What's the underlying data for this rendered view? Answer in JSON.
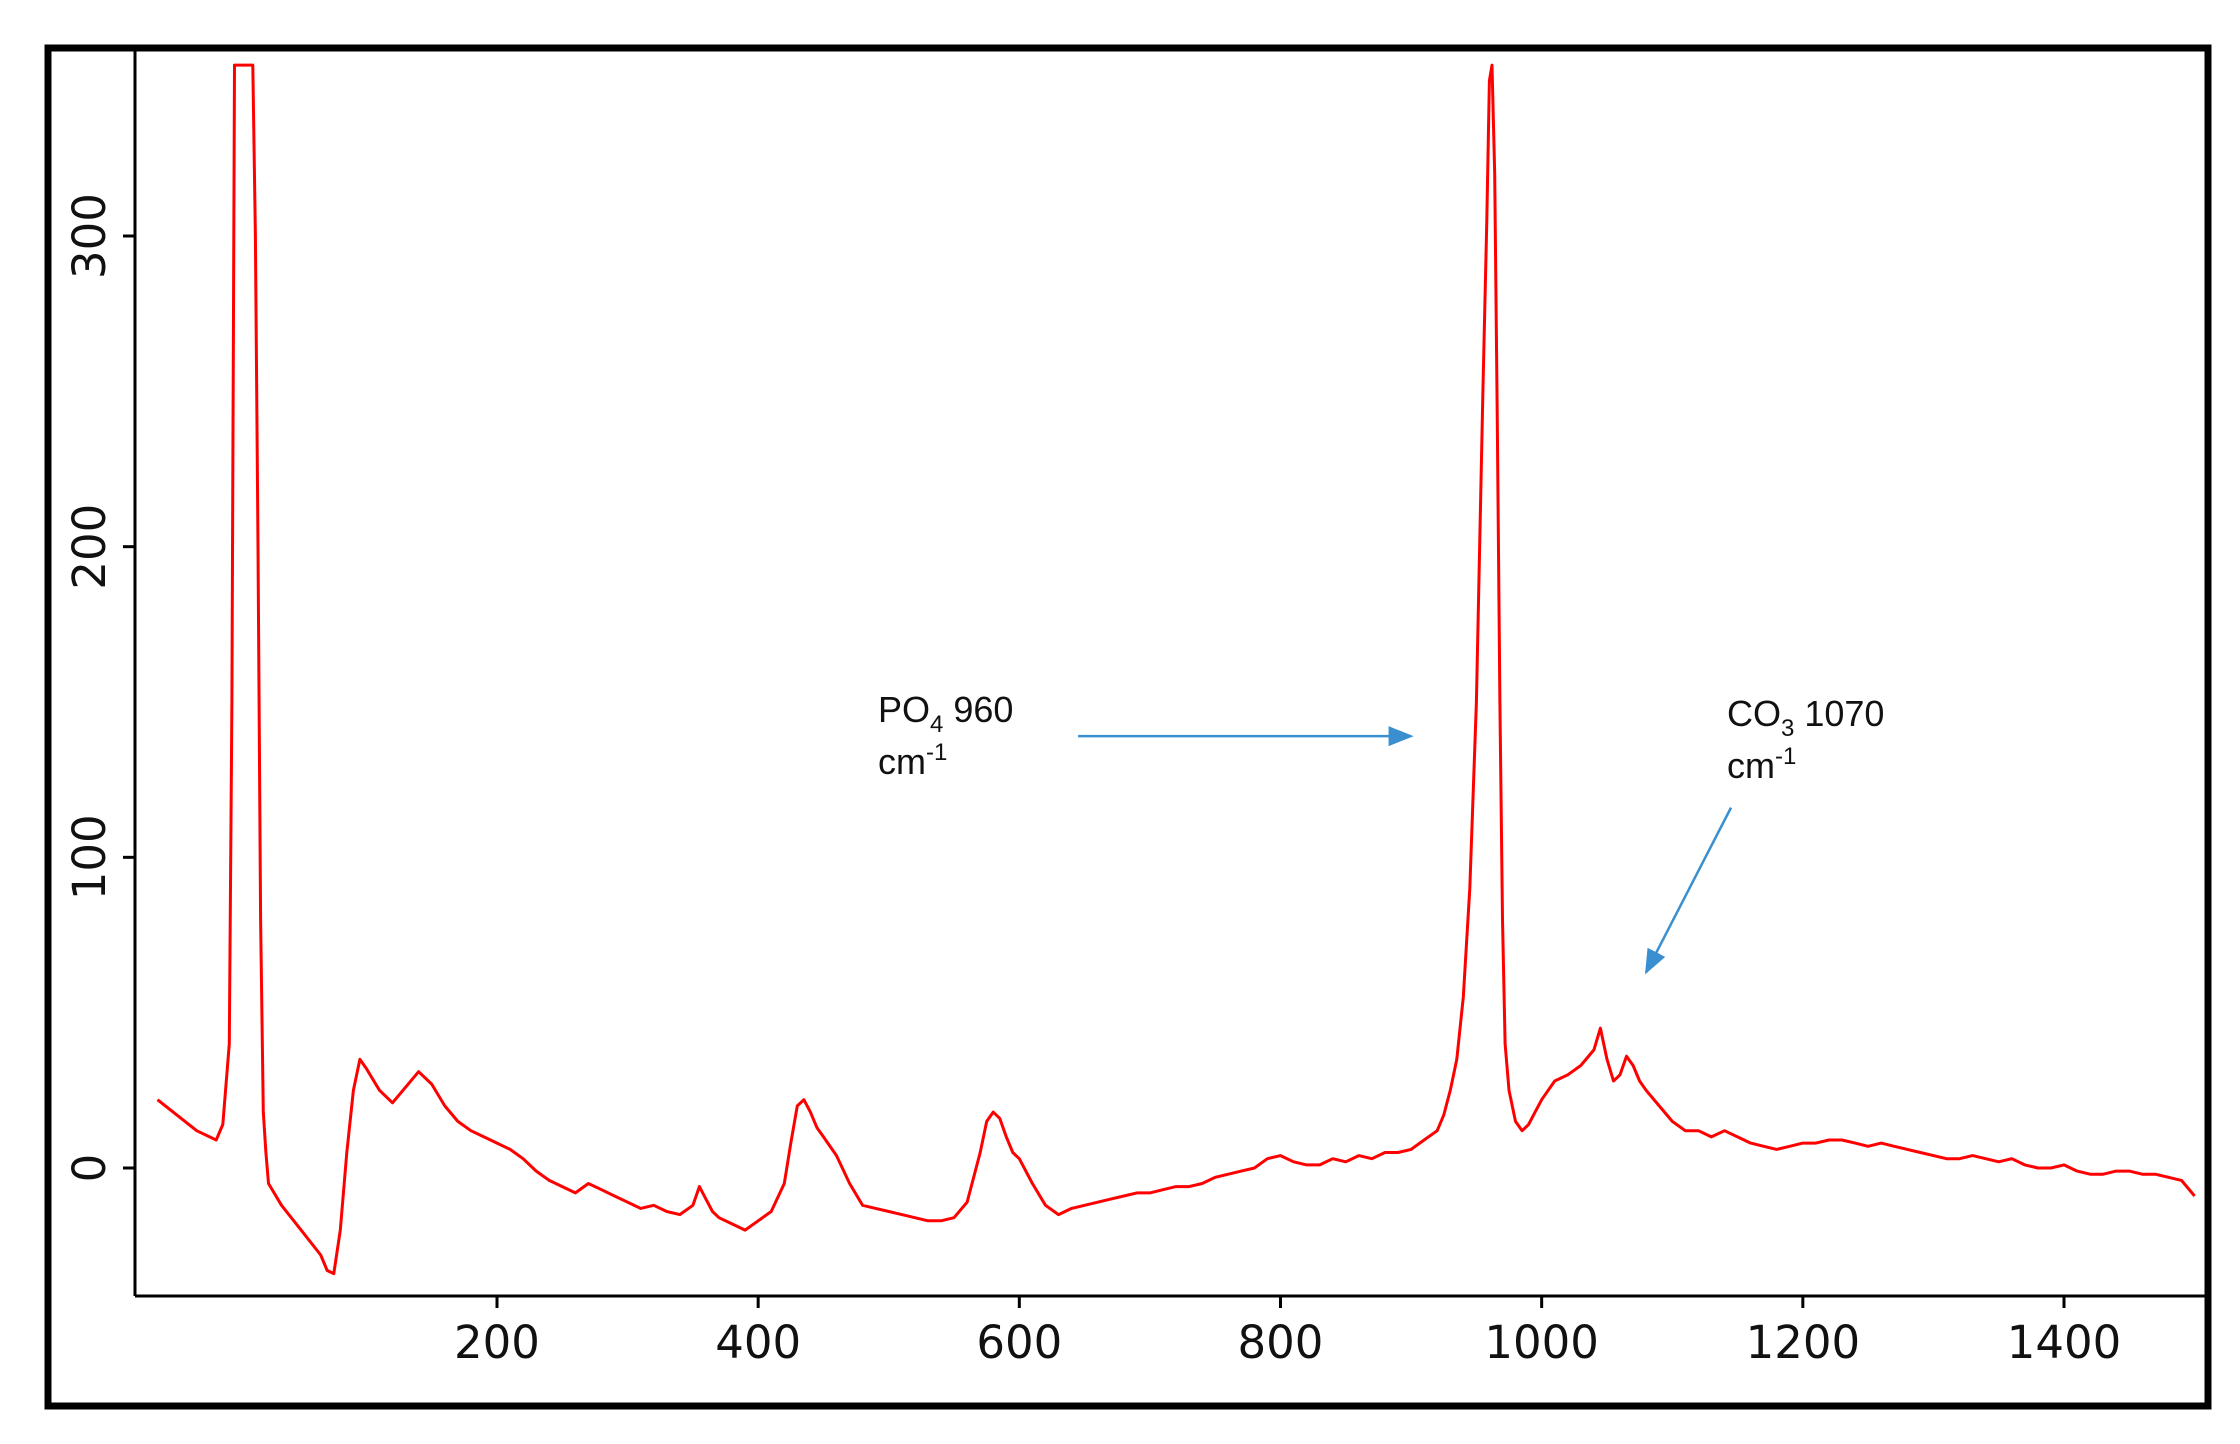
{
  "chart_data": {
    "type": "line",
    "title": "",
    "xlabel": "",
    "ylabel": "",
    "xlim": [
      -60,
      1500
    ],
    "ylim": [
      -42,
      355
    ],
    "x_ticks": [
      200,
      400,
      600,
      800,
      1000,
      1200,
      1400
    ],
    "y_ticks": [
      0,
      100,
      200,
      300
    ],
    "grid": false,
    "legend": "none",
    "colors": {
      "line": "#ff0000",
      "arrow": "#3a8fd0",
      "frame": "#000000",
      "axis": "#000000"
    },
    "series": [
      {
        "x": [
          -60,
          -45,
          -30,
          -15,
          -10,
          -5,
          -3,
          -1,
          1,
          3,
          8,
          13,
          15,
          17,
          19,
          21,
          23,
          25,
          35,
          50,
          65,
          70,
          75,
          80,
          85,
          90,
          95,
          100,
          110,
          120,
          130,
          140,
          150,
          160,
          170,
          180,
          190,
          200,
          210,
          220,
          230,
          240,
          250,
          260,
          270,
          280,
          290,
          300,
          310,
          320,
          330,
          340,
          350,
          355,
          360,
          365,
          370,
          380,
          390,
          400,
          410,
          420,
          425,
          430,
          435,
          440,
          445,
          450,
          460,
          470,
          480,
          490,
          500,
          510,
          520,
          530,
          540,
          550,
          560,
          570,
          575,
          580,
          585,
          590,
          595,
          600,
          610,
          620,
          630,
          640,
          650,
          660,
          670,
          680,
          690,
          700,
          710,
          720,
          730,
          740,
          750,
          760,
          770,
          780,
          790,
          800,
          810,
          820,
          830,
          840,
          850,
          860,
          870,
          880,
          890,
          900,
          910,
          920,
          925,
          930,
          935,
          940,
          945,
          950,
          955,
          958,
          960,
          962,
          964,
          966,
          968,
          970,
          972,
          975,
          980,
          985,
          990,
          995,
          1000,
          1005,
          1010,
          1020,
          1030,
          1040,
          1045,
          1050,
          1055,
          1060,
          1065,
          1070,
          1075,
          1080,
          1090,
          1100,
          1110,
          1120,
          1130,
          1140,
          1150,
          1160,
          1170,
          1180,
          1190,
          1200,
          1210,
          1220,
          1230,
          1240,
          1250,
          1260,
          1270,
          1280,
          1290,
          1300,
          1310,
          1320,
          1330,
          1340,
          1350,
          1360,
          1370,
          1380,
          1390,
          1400,
          1410,
          1420,
          1430,
          1440,
          1450,
          1460,
          1470,
          1480,
          1490,
          1500
        ],
        "y": [
          22,
          17,
          12,
          9,
          14,
          40,
          150,
          355,
          355,
          355,
          355,
          355,
          300,
          200,
          80,
          18,
          5,
          -5,
          -12,
          -20,
          -28,
          -33,
          -34,
          -20,
          5,
          25,
          35,
          32,
          25,
          21,
          26,
          31,
          27,
          20,
          15,
          12,
          10,
          8,
          6,
          3,
          -1,
          -4,
          -6,
          -8,
          -5,
          -7,
          -9,
          -11,
          -13,
          -12,
          -14,
          -15,
          -12,
          -6,
          -10,
          -14,
          -16,
          -18,
          -20,
          -17,
          -14,
          -5,
          8,
          20,
          22,
          18,
          13,
          10,
          4,
          -5,
          -12,
          -13,
          -14,
          -15,
          -16,
          -17,
          -17,
          -16,
          -11,
          5,
          15,
          18,
          16,
          10,
          5,
          3,
          -5,
          -12,
          -15,
          -13,
          -12,
          -11,
          -10,
          -9,
          -8,
          -8,
          -7,
          -6,
          -6,
          -5,
          -3,
          -2,
          -1,
          0,
          3,
          4,
          2,
          1,
          1,
          3,
          2,
          4,
          3,
          5,
          5,
          6,
          9,
          12,
          17,
          25,
          35,
          55,
          90,
          150,
          250,
          305,
          350,
          355,
          320,
          240,
          150,
          80,
          40,
          25,
          15,
          12,
          14,
          18,
          22,
          25,
          28,
          30,
          33,
          38,
          45,
          35,
          28,
          30,
          36,
          33,
          28,
          25,
          20,
          15,
          12,
          12,
          10,
          12,
          10,
          8,
          7,
          6,
          7,
          8,
          8,
          9,
          9,
          8,
          7,
          8,
          7,
          6,
          5,
          4,
          3,
          3,
          4,
          3,
          2,
          3,
          1,
          0,
          0,
          1,
          -1,
          -2,
          -2,
          -1,
          -1,
          -2,
          -2,
          -3,
          -4,
          -9
        ]
      }
    ],
    "annotations": [
      {
        "text": "PO",
        "sub": "4",
        "value": " 960",
        "line2": "cm",
        "sup": "-1",
        "arrow_tip": [
          900,
          139
        ],
        "arrow_tail": [
          645,
          139
        ]
      },
      {
        "text": "CO",
        "sub": "3",
        "value": " 1070",
        "line2": "cm",
        "sup": "-1",
        "arrow_tip": [
          1080,
          63
        ],
        "arrow_tail": [
          1145,
          116
        ]
      }
    ]
  }
}
